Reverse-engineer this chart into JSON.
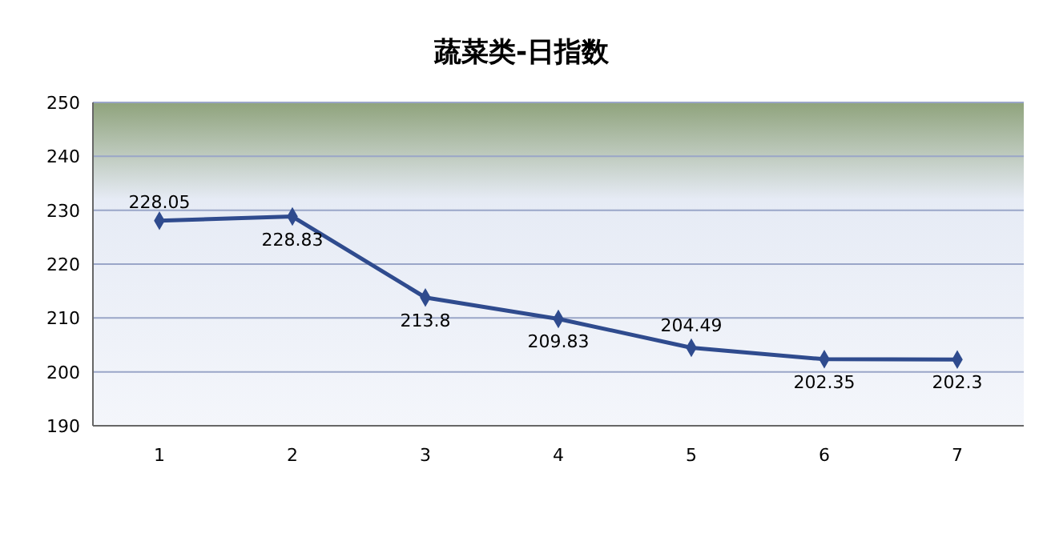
{
  "chart_data": {
    "type": "line",
    "title": "蔬菜类-日指数",
    "categories": [
      "1",
      "2",
      "3",
      "4",
      "5",
      "6",
      "7"
    ],
    "series": [
      {
        "color": "#2f4b8e",
        "values": [
          228.05,
          228.83,
          213.8,
          209.83,
          204.49,
          202.35,
          202.3
        ]
      }
    ],
    "ylim": [
      190,
      250
    ],
    "yticks": [
      190,
      200,
      210,
      220,
      230,
      240,
      250
    ],
    "grid": "y",
    "marker": "diamond",
    "data_labels": true
  }
}
